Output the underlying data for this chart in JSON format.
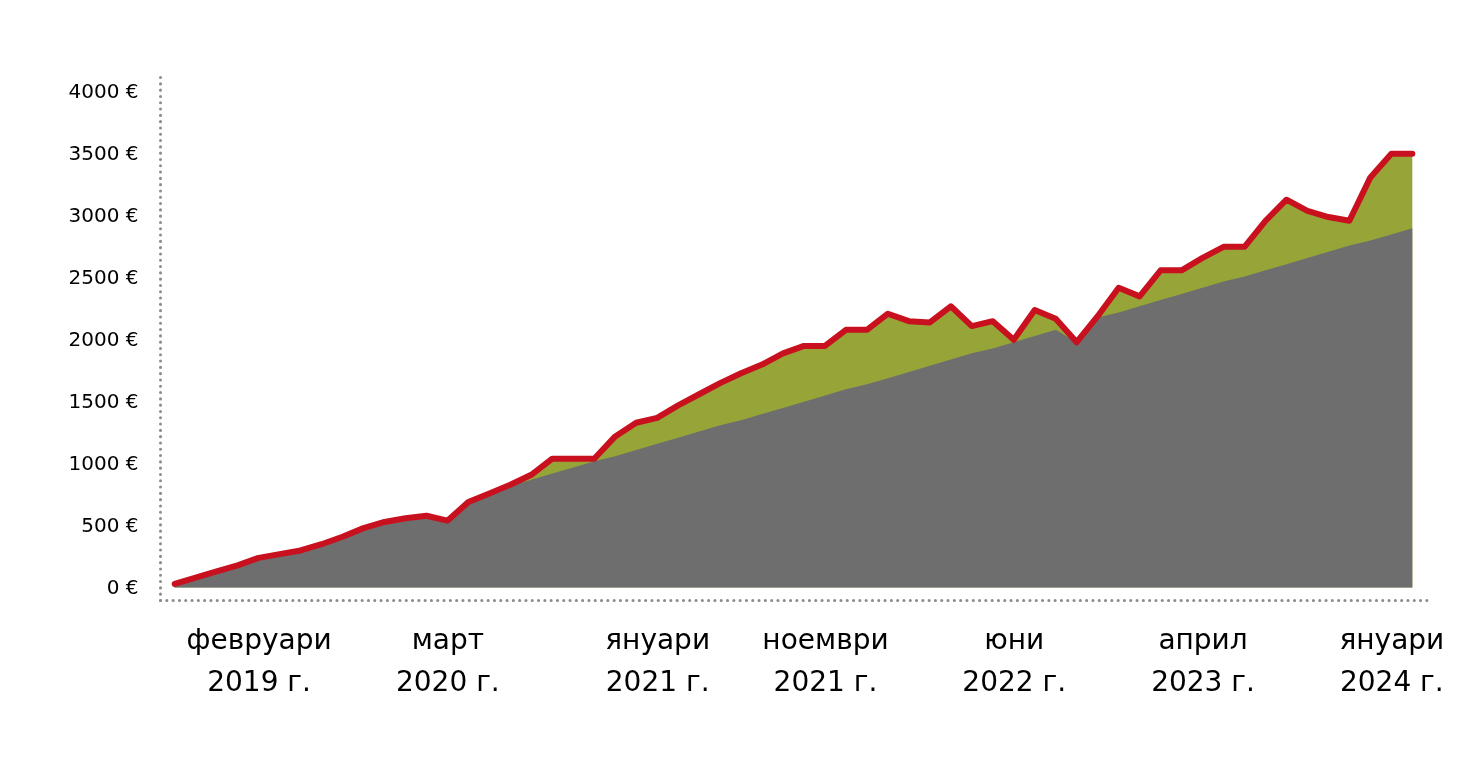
{
  "chart_data": {
    "type": "area",
    "categories": [
      null,
      null,
      null,
      null,
      "февруари 2019 г.",
      null,
      null,
      null,
      null,
      null,
      null,
      null,
      null,
      "март 2020 г.",
      null,
      null,
      null,
      null,
      null,
      null,
      null,
      null,
      null,
      "януари 2021 г.",
      null,
      null,
      null,
      null,
      null,
      null,
      null,
      "ноември 2021 г.",
      null,
      null,
      null,
      null,
      null,
      null,
      null,
      null,
      "юни 2022 г.",
      null,
      null,
      null,
      null,
      null,
      null,
      null,
      null,
      "април 2023 г.",
      null,
      null,
      null,
      null,
      null,
      null,
      null,
      null,
      "януари 2024 г.",
      null
    ],
    "ylim": [
      -100,
      4120
    ],
    "yticks": [
      {
        "value": 0,
        "label": "0 €"
      },
      {
        "value": 500,
        "label": "500 €"
      },
      {
        "value": 1000,
        "label": "1000 €"
      },
      {
        "value": 1500,
        "label": "1500 €"
      },
      {
        "value": 2000,
        "label": "2000 €"
      },
      {
        "value": 2500,
        "label": "2500 €"
      },
      {
        "value": 3000,
        "label": "3000 €"
      },
      {
        "value": 3500,
        "label": "3500 €"
      },
      {
        "value": 4000,
        "label": "4000 €"
      }
    ],
    "series": [
      {
        "color": "#97a538",
        "values": [
          30,
          80,
          130,
          180,
          240,
          270,
          300,
          350,
          410,
          480,
          530,
          560,
          580,
          540,
          690,
          760,
          830,
          910,
          1040,
          1040,
          1040,
          1220,
          1330,
          1370,
          1470,
          1560,
          1650,
          1730,
          1800,
          1890,
          1950,
          1950,
          2080,
          2080,
          2210,
          2150,
          2140,
          2270,
          2110,
          2150,
          2000,
          2240,
          2170,
          1980,
          2190,
          2420,
          2350,
          2560,
          2560,
          2660,
          2750,
          2750,
          2960,
          3130,
          3040,
          2990,
          2960,
          3310,
          3500,
          3500
        ]
      },
      {
        "color": "#6e6e6e",
        "values": [
          30,
          80,
          130,
          180,
          240,
          270,
          300,
          350,
          410,
          480,
          530,
          560,
          580,
          540,
          690,
          760,
          820,
          870,
          920,
          970,
          1020,
          1060,
          1110,
          1160,
          1210,
          1260,
          1310,
          1350,
          1400,
          1450,
          1500,
          1550,
          1600,
          1640,
          1690,
          1740,
          1790,
          1840,
          1890,
          1930,
          1980,
          2030,
          2080,
          1980,
          2180,
          2220,
          2270,
          2320,
          2370,
          2420,
          2470,
          2510,
          2560,
          2610,
          2660,
          2710,
          2760,
          2800,
          2850,
          2900
        ]
      },
      {
        "type": "line",
        "color": "#c8101e",
        "values": [
          30,
          80,
          130,
          180,
          240,
          270,
          300,
          350,
          410,
          480,
          530,
          560,
          580,
          540,
          690,
          760,
          830,
          910,
          1040,
          1040,
          1040,
          1220,
          1330,
          1370,
          1470,
          1560,
          1650,
          1730,
          1800,
          1890,
          1950,
          1950,
          2080,
          2080,
          2210,
          2150,
          2140,
          2270,
          2110,
          2150,
          2000,
          2240,
          2170,
          1980,
          2190,
          2420,
          2350,
          2560,
          2560,
          2660,
          2750,
          2750,
          2960,
          3130,
          3040,
          2990,
          2960,
          3310,
          3500,
          3500
        ]
      }
    ]
  }
}
